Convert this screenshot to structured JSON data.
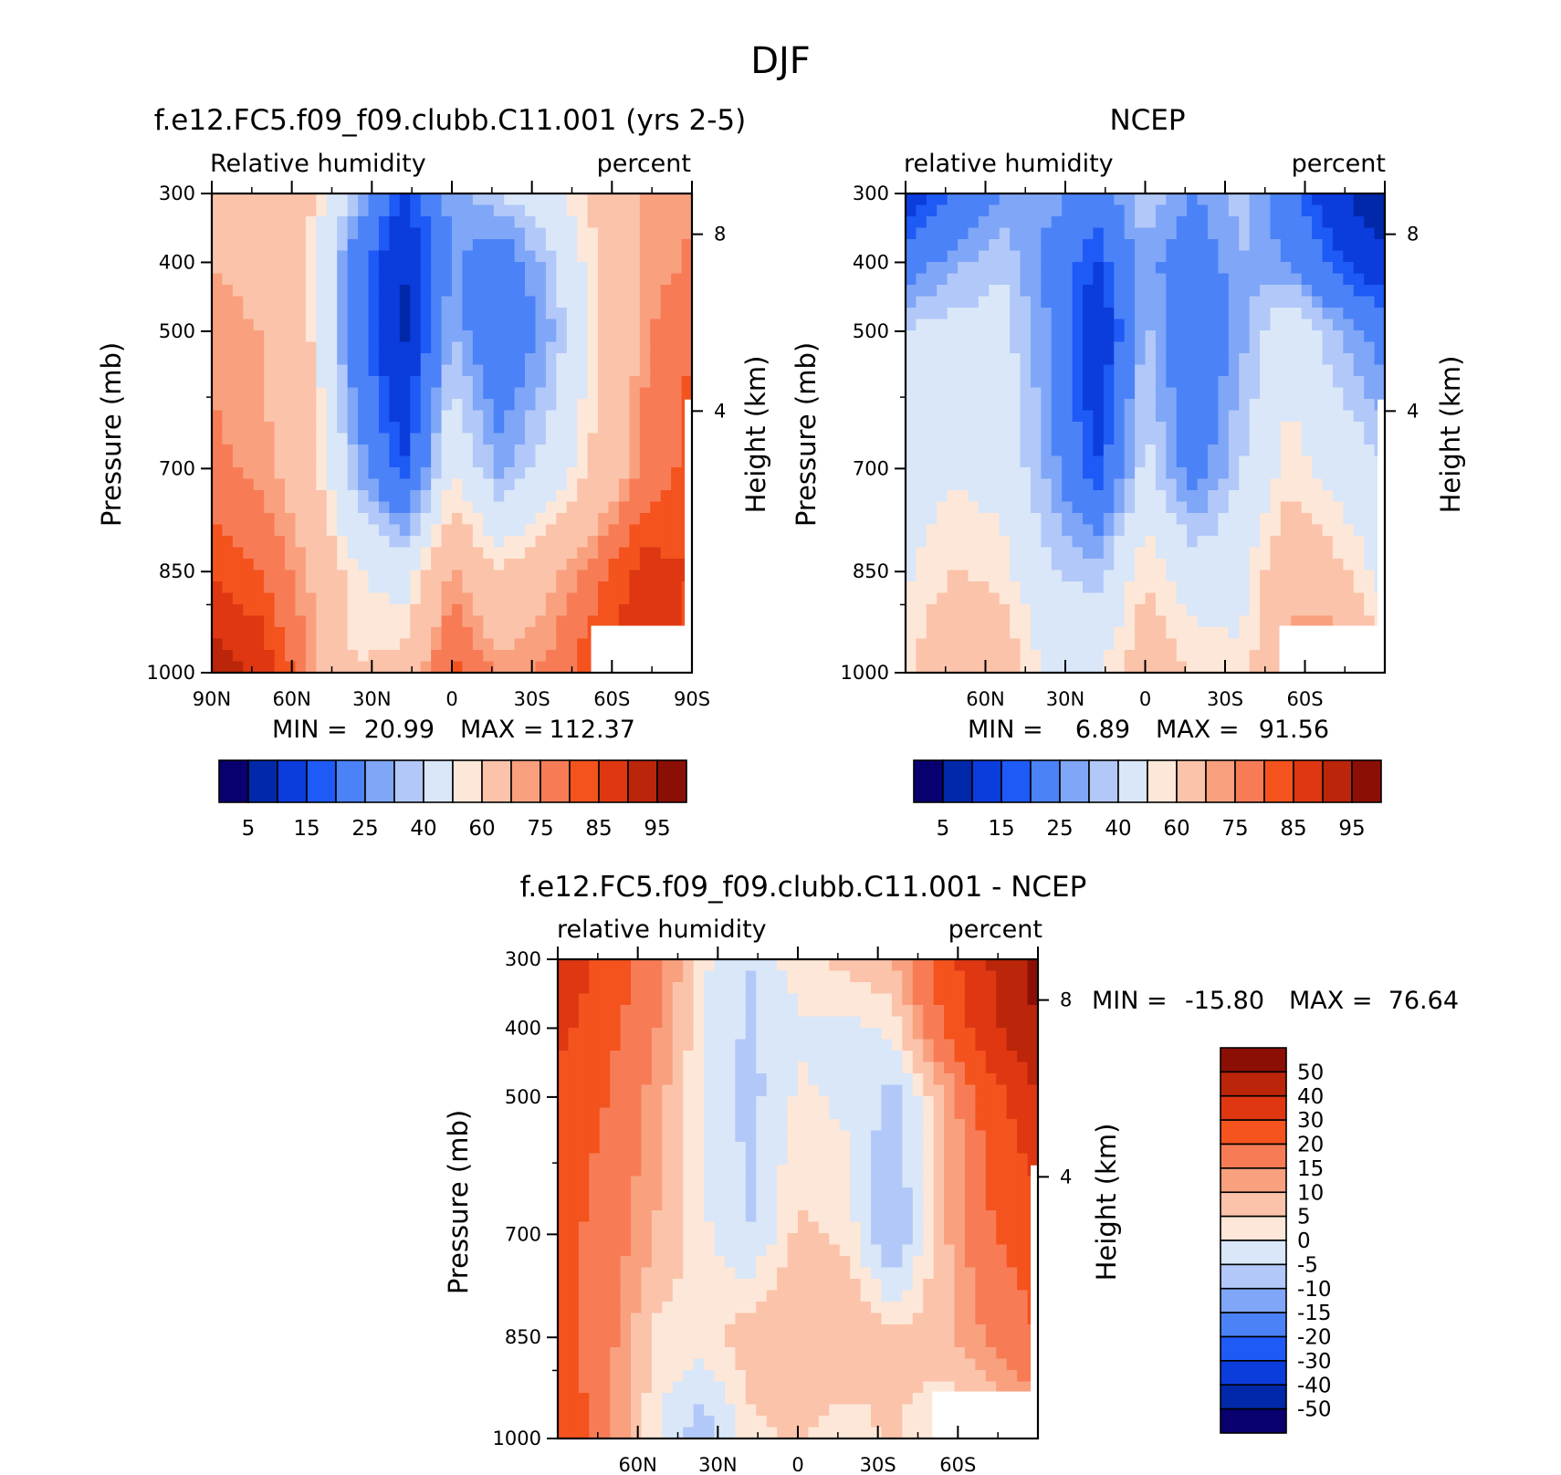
{
  "page_title": "DJF",
  "colors": {
    "rh_bar": [
      "#08006e",
      "#0028a8",
      "#0b3cdc",
      "#1e5af5",
      "#4b82f7",
      "#7fa6f7",
      "#b2c8f8",
      "#d9e7f8",
      "#fde7d8",
      "#fbc3aa",
      "#f9a07f",
      "#f77c56",
      "#f4531d",
      "#de3712",
      "#bb2509",
      "#8c0f06"
    ],
    "diff_bar": [
      "#08006e",
      "#0028a8",
      "#0b3cdc",
      "#1e5af5",
      "#4b82f7",
      "#7fa6f7",
      "#b2c8f8",
      "#d9e7f8",
      "#fde7d8",
      "#fbc3aa",
      "#f9a07f",
      "#f77c56",
      "#f4531d",
      "#de3712",
      "#bb2509",
      "#8c0f06"
    ],
    "mask": "#ffffff"
  },
  "chart_data": [
    {
      "id": "model",
      "type": "heatmap",
      "title": "f.e12.FC5.f09_f09.clubb.C11.001 (yrs 2-5)",
      "left_label": "Relative humidity",
      "right_label": "percent",
      "ylabel": "Pressure (mb)",
      "y2label": "Height (km)",
      "yticks": [
        "300",
        "400",
        "500",
        "700",
        "850",
        "1000"
      ],
      "y2ticks": [
        "8",
        "4"
      ],
      "xticks": [
        "90N",
        "60N",
        "30N",
        "0",
        "30S",
        "60S",
        "90S"
      ],
      "stats": {
        "min_label": "MIN =",
        "min": "20.99",
        "max_label": "MAX =",
        "max": "112.37"
      },
      "colorbar": {
        "labels": [
          "5",
          "15",
          "25",
          "40",
          "60",
          "75",
          "85",
          "95"
        ]
      },
      "x": [
        90,
        72,
        54,
        36,
        18,
        0,
        -18,
        -36,
        -54,
        -72,
        -90
      ],
      "levels": [
        300,
        400,
        500,
        700,
        850,
        1000
      ],
      "values": [
        [
          78,
          76,
          72,
          52,
          28,
          48,
          55,
          62,
          72,
          80,
          82
        ],
        [
          80,
          78,
          70,
          40,
          20,
          46,
          38,
          52,
          70,
          80,
          84
        ],
        [
          82,
          80,
          72,
          38,
          18,
          50,
          35,
          48,
          68,
          82,
          88
        ],
        [
          84,
          82,
          76,
          50,
          30,
          64,
          48,
          58,
          72,
          84,
          90
        ],
        [
          92,
          88,
          80,
          66,
          60,
          82,
          70,
          78,
          86,
          94,
          92
        ],
        [
          100,
          96,
          84,
          70,
          74,
          90,
          82,
          84,
          92,
          96,
          90
        ]
      ]
    },
    {
      "id": "ncep",
      "type": "heatmap",
      "title": "NCEP",
      "left_label": "relative humidity",
      "right_label": "percent",
      "ylabel": "Pressure (mb)",
      "y2label": "Height (km)",
      "yticks": [
        "300",
        "400",
        "500",
        "700",
        "850",
        "1000"
      ],
      "y2ticks": [
        "8",
        "4"
      ],
      "xticks": [
        "60N",
        "30N",
        "0",
        "30S",
        "60S"
      ],
      "stats": {
        "min_label": "MIN =",
        "min": "6.89",
        "max_label": "MAX =",
        "max": "91.56"
      },
      "colorbar": {
        "labels": [
          "5",
          "15",
          "25",
          "40",
          "60",
          "75",
          "85",
          "95"
        ]
      },
      "x": [
        90,
        72,
        54,
        36,
        18,
        0,
        -18,
        -36,
        -54,
        -72,
        -90
      ],
      "levels": [
        300,
        400,
        500,
        700,
        850,
        1000
      ],
      "values": [
        [
          22,
          35,
          45,
          48,
          40,
          55,
          45,
          52,
          38,
          22,
          12
        ],
        [
          40,
          48,
          55,
          42,
          30,
          48,
          38,
          50,
          45,
          32,
          22
        ],
        [
          56,
          58,
          58,
          45,
          20,
          52,
          35,
          48,
          62,
          50,
          40
        ],
        [
          60,
          64,
          62,
          48,
          30,
          58,
          40,
          55,
          68,
          62,
          56
        ],
        [
          64,
          70,
          68,
          56,
          52,
          70,
          60,
          62,
          78,
          72,
          62
        ],
        [
          68,
          80,
          78,
          62,
          64,
          76,
          70,
          66,
          84,
          88,
          70
        ]
      ]
    },
    {
      "id": "diff",
      "type": "heatmap",
      "title": "f.e12.FC5.f09_f09.clubb.C11.001 - NCEP",
      "left_label": "relative humidity",
      "right_label": "percent",
      "ylabel": "Pressure (mb)",
      "y2label": "Height (km)",
      "yticks": [
        "300",
        "400",
        "500",
        "700",
        "850",
        "1000"
      ],
      "y2ticks": [
        "8",
        "4"
      ],
      "xticks": [
        "60N",
        "30N",
        "0",
        "30S",
        "60S"
      ],
      "stats": {
        "min_label": "MIN =",
        "min": "-15.80",
        "max_label": "MAX =",
        "max": "76.64"
      },
      "colorbar": {
        "labels": [
          "50",
          "40",
          "30",
          "20",
          "15",
          "10",
          "5",
          "0",
          "-5",
          "-10",
          "-15",
          "-20",
          "-30",
          "-40",
          "-50"
        ]
      },
      "x": [
        90,
        72,
        54,
        36,
        18,
        0,
        -18,
        -36,
        -54,
        -72,
        -90
      ],
      "levels": [
        300,
        400,
        500,
        700,
        850,
        1000
      ],
      "values": [
        [
          45,
          30,
          22,
          4,
          -2,
          6,
          8,
          12,
          30,
          45,
          60
        ],
        [
          38,
          28,
          18,
          3,
          -3,
          2,
          2,
          4,
          25,
          42,
          55
        ],
        [
          30,
          25,
          15,
          3,
          -4,
          4,
          2,
          -4,
          10,
          30,
          45
        ],
        [
          28,
          22,
          12,
          4,
          -2,
          8,
          6,
          -8,
          10,
          24,
          30
        ],
        [
          30,
          20,
          6,
          5,
          10,
          12,
          12,
          8,
          10,
          18,
          25
        ],
        [
          34,
          18,
          4,
          -6,
          5,
          8,
          4,
          8,
          2,
          4,
          10
        ]
      ]
    }
  ]
}
